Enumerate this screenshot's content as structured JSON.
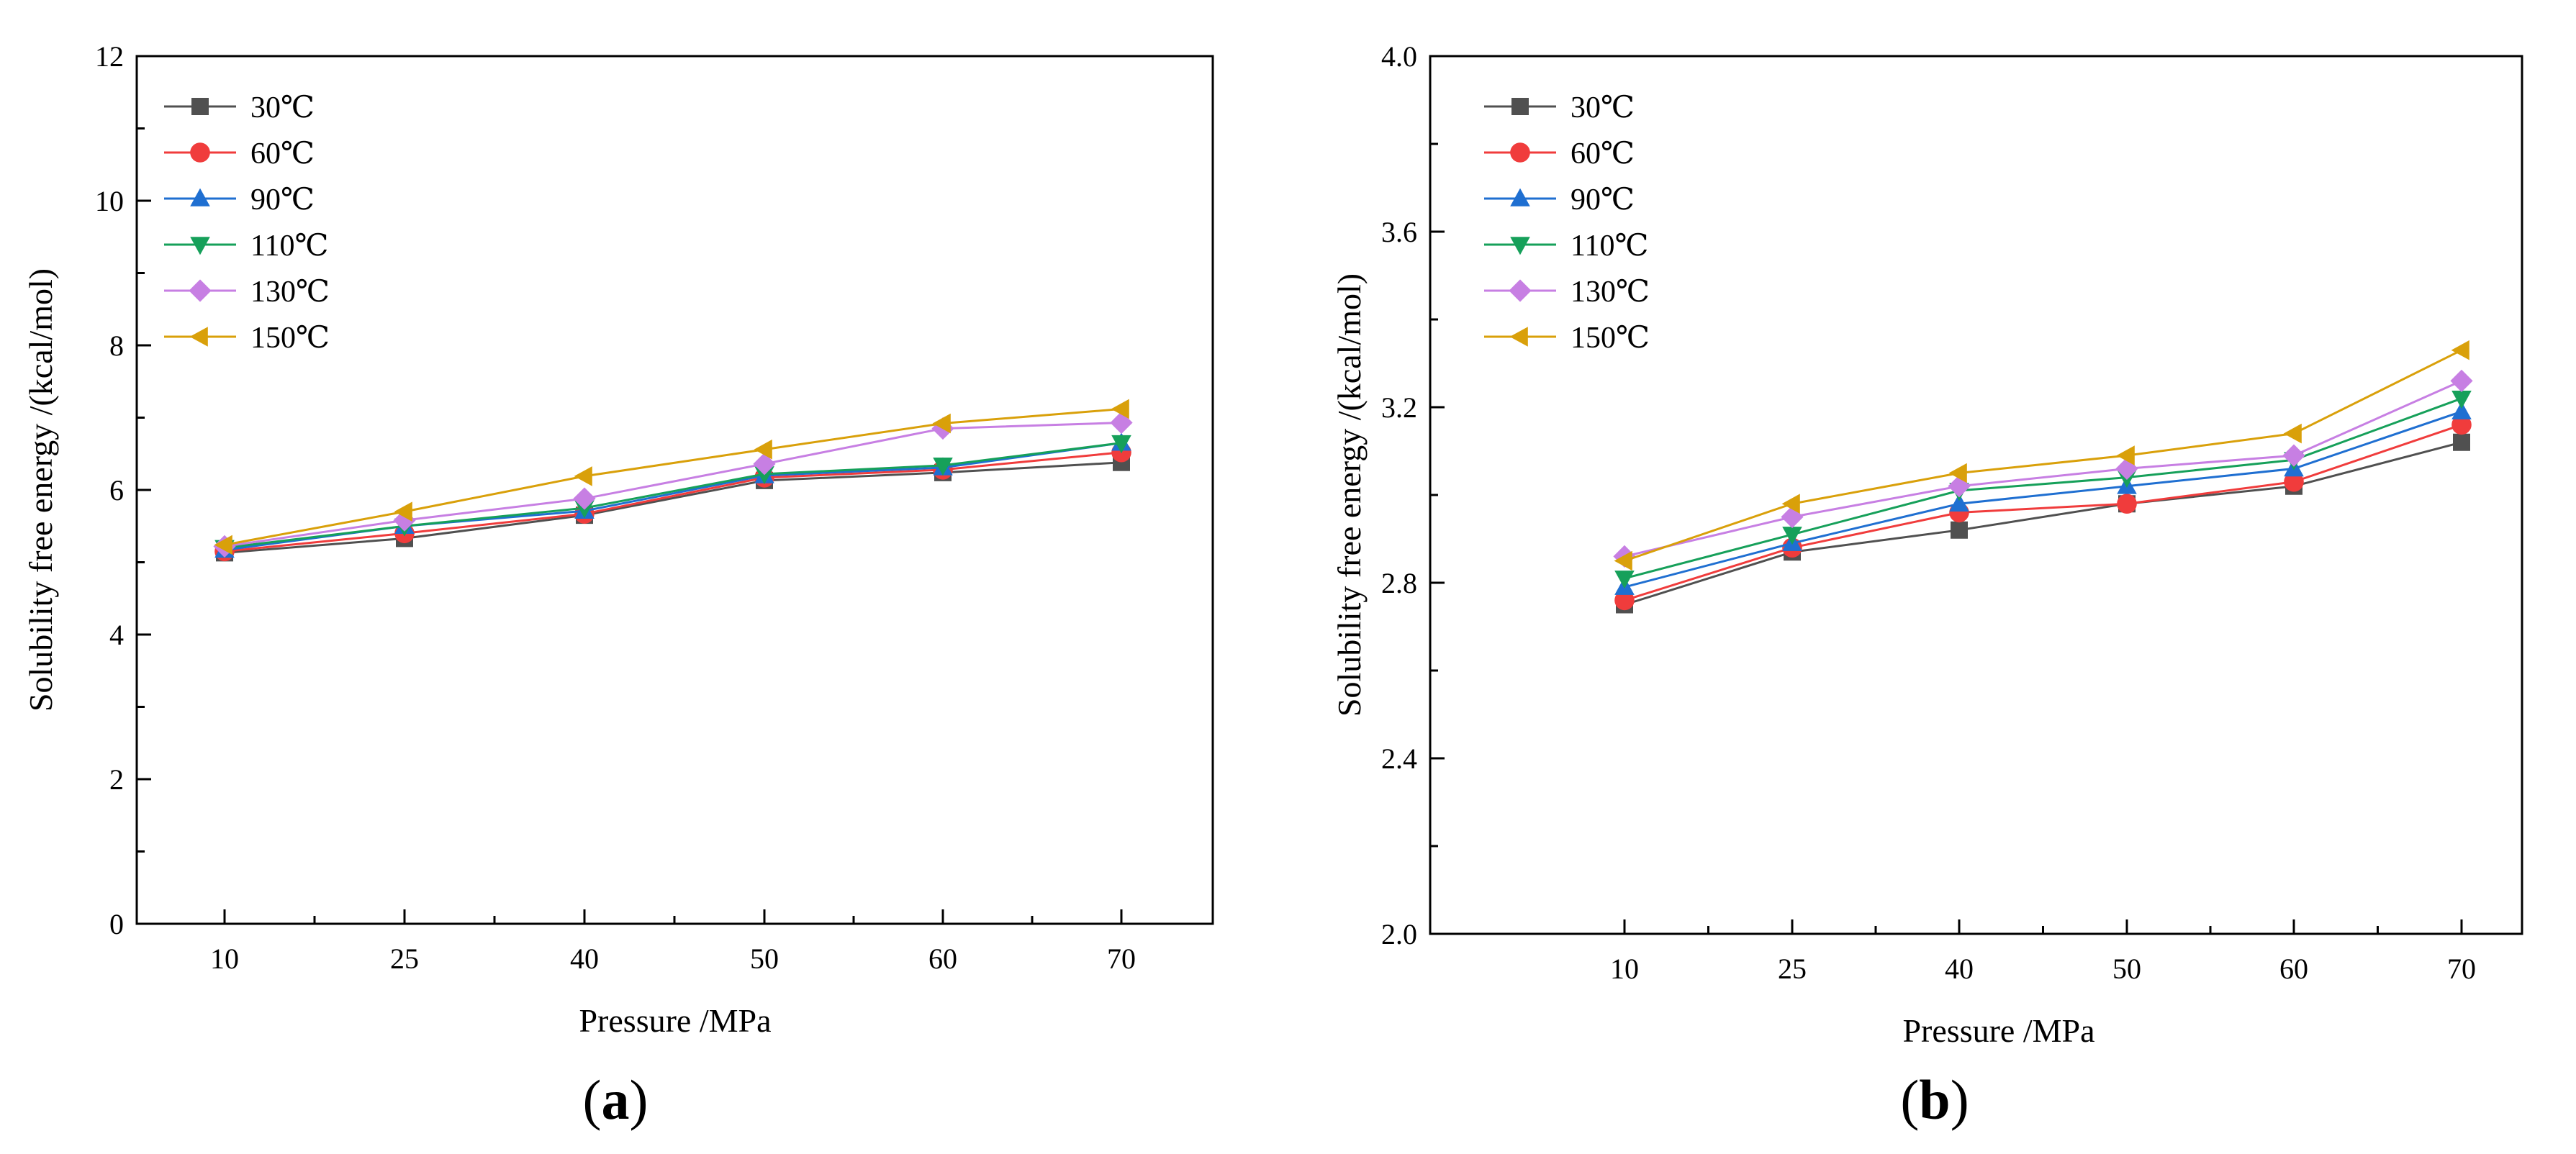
{
  "chart_data": [
    {
      "type": "line",
      "panel_label": "a",
      "xlabel": "Pressure /MPa",
      "ylabel": "Solubility free energy /(kcal/mol)",
      "categories": [
        "10",
        "25",
        "40",
        "50",
        "60",
        "70"
      ],
      "ylim": [
        0,
        12
      ],
      "yticks": [
        "0",
        "2",
        "4",
        "6",
        "8",
        "10",
        "12"
      ],
      "legend_position": "top-left",
      "series": [
        {
          "name": "30℃",
          "marker": "square",
          "color": "#505050",
          "values": [
            5.13,
            5.33,
            5.65,
            6.13,
            6.24,
            6.38
          ]
        },
        {
          "name": "60℃",
          "marker": "circle",
          "color": "#f03c3c",
          "values": [
            5.15,
            5.4,
            5.67,
            6.17,
            6.28,
            6.52
          ]
        },
        {
          "name": "90℃",
          "marker": "triangle-up",
          "color": "#1f6fd1",
          "values": [
            5.17,
            5.5,
            5.71,
            6.2,
            6.31,
            6.65
          ]
        },
        {
          "name": "110℃",
          "marker": "triangle-down",
          "color": "#16a05a",
          "values": [
            5.2,
            5.5,
            5.75,
            6.22,
            6.34,
            6.65
          ]
        },
        {
          "name": "130℃",
          "marker": "diamond",
          "color": "#c77fe3",
          "values": [
            5.22,
            5.58,
            5.88,
            6.36,
            6.85,
            6.93
          ]
        },
        {
          "name": "150℃",
          "marker": "triangle-left",
          "color": "#d9a00a",
          "values": [
            5.24,
            5.7,
            6.19,
            6.56,
            6.92,
            7.12
          ]
        }
      ]
    },
    {
      "type": "line",
      "panel_label": "b",
      "xlabel": "Pressure /MPa",
      "ylabel": "Solubility free energy /(kcal/mol)",
      "categories": [
        "10",
        "25",
        "40",
        "50",
        "60",
        "70"
      ],
      "ylim": [
        2.0,
        4.0
      ],
      "yticks": [
        "2.0",
        "2.4",
        "2.8",
        "3.2",
        "3.6",
        "4.0"
      ],
      "legend_position": "top-left",
      "series": [
        {
          "name": "30℃",
          "marker": "square",
          "color": "#505050",
          "values": [
            2.75,
            2.87,
            2.92,
            2.98,
            3.02,
            3.12
          ]
        },
        {
          "name": "60℃",
          "marker": "circle",
          "color": "#f03c3c",
          "values": [
            2.76,
            2.88,
            2.96,
            2.98,
            3.03,
            3.16
          ]
        },
        {
          "name": "90℃",
          "marker": "triangle-up",
          "color": "#1f6fd1",
          "values": [
            2.79,
            2.89,
            2.98,
            3.02,
            3.06,
            3.19
          ]
        },
        {
          "name": "110℃",
          "marker": "triangle-down",
          "color": "#16a05a",
          "values": [
            2.81,
            2.91,
            3.01,
            3.04,
            3.08,
            3.22
          ]
        },
        {
          "name": "130℃",
          "marker": "diamond",
          "color": "#c77fe3",
          "values": [
            2.86,
            2.95,
            3.02,
            3.06,
            3.09,
            3.26
          ]
        },
        {
          "name": "150℃",
          "marker": "triangle-left",
          "color": "#d9a00a",
          "values": [
            2.85,
            2.98,
            3.05,
            3.09,
            3.14,
            3.33
          ]
        }
      ]
    }
  ]
}
